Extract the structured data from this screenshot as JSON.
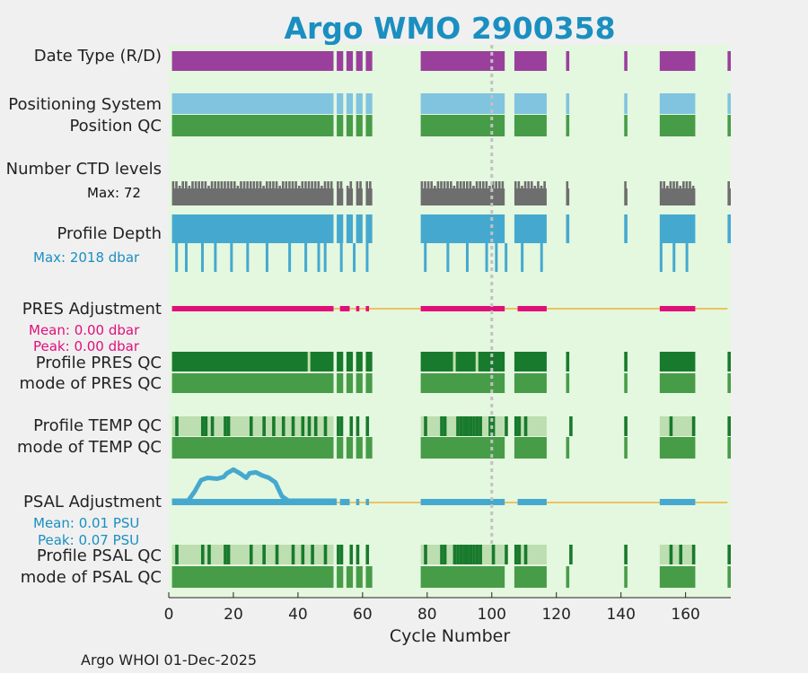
{
  "chart_data": {
    "type": "timeline",
    "title": "Argo WMO 2900358",
    "xlabel": "Cycle Number",
    "xlim": [
      0,
      174
    ],
    "xticks": [
      0,
      20,
      40,
      60,
      80,
      100,
      120,
      140,
      160
    ],
    "vline_x": 100,
    "footer": "Argo WHOI 01-Dec-2025",
    "row_labels": {
      "date_type": "Date Type (R/D)",
      "positioning_system": "Positioning System",
      "position_qc": "Position QC",
      "num_ctd_levels": "Number CTD levels",
      "profile_depth": "Profile Depth",
      "pres_adjustment": "PRES Adjustment",
      "profile_pres_qc": "Profile PRES QC",
      "mode_pres_qc": "mode of PRES QC",
      "profile_temp_qc": "Profile TEMP QC",
      "mode_temp_qc": "mode of TEMP QC",
      "psal_adjustment": "PSAL Adjustment",
      "profile_psal_qc": "Profile PSAL QC",
      "mode_psal_qc": "mode of PSAL QC"
    },
    "annotations": {
      "ctd_max": "Max: 72",
      "depth_max": "Max: 2018 dbar",
      "pres_mean": "Mean: 0.00 dbar",
      "pres_peak": "Peak: 0.00 dbar",
      "psal_mean": "Mean: 0.01 PSU",
      "psal_peak": "Peak: 0.07 PSU"
    },
    "data_segments": [
      [
        1,
        51
      ],
      [
        52,
        54
      ],
      [
        55,
        57
      ],
      [
        58,
        60
      ],
      [
        61,
        63
      ],
      [
        78,
        104
      ],
      [
        107,
        117
      ],
      [
        123,
        124
      ],
      [
        141,
        142
      ],
      [
        152,
        163
      ],
      [
        173,
        174
      ]
    ],
    "pres_adj_segments": [
      [
        1,
        51
      ],
      [
        53,
        56
      ],
      [
        58,
        59
      ],
      [
        61,
        62
      ],
      [
        78,
        104
      ],
      [
        108,
        117
      ],
      [
        152,
        163
      ]
    ],
    "psal_adj_segments": [
      [
        1,
        52
      ],
      [
        53,
        56
      ],
      [
        58,
        59
      ],
      [
        61,
        62
      ],
      [
        78,
        104
      ],
      [
        108,
        117
      ],
      [
        152,
        163
      ]
    ],
    "psal_adjustment_values": [
      [
        1,
        0
      ],
      [
        6,
        0
      ],
      [
        8,
        0.02
      ],
      [
        10,
        0.045
      ],
      [
        12,
        0.05
      ],
      [
        15,
        0.048
      ],
      [
        17,
        0.052
      ],
      [
        18,
        0.06
      ],
      [
        20,
        0.068
      ],
      [
        22,
        0.06
      ],
      [
        24,
        0.05
      ],
      [
        25,
        0.06
      ],
      [
        27,
        0.062
      ],
      [
        29,
        0.055
      ],
      [
        31,
        0.05
      ],
      [
        33,
        0.04
      ],
      [
        35,
        0.01
      ],
      [
        37,
        0
      ],
      [
        52,
        0
      ]
    ],
    "temp_qc_light_ranges": [
      [
        1,
        51
      ],
      [
        78,
        104
      ],
      [
        107,
        117
      ],
      [
        152,
        163
      ]
    ],
    "temp_qc_dark_cycles": [
      2,
      10,
      11,
      13,
      17,
      18,
      25,
      29,
      32,
      35,
      38,
      41,
      43,
      45,
      48,
      52,
      53,
      56,
      58,
      61,
      79,
      84,
      85,
      89,
      90,
      91,
      92,
      93,
      94,
      95,
      96,
      99,
      100,
      104,
      107,
      108,
      110,
      124,
      141,
      155,
      162,
      173
    ],
    "psal_qc_dark_cycles": [
      2,
      10,
      12,
      17,
      18,
      25,
      29,
      33,
      38,
      41,
      44,
      48,
      52,
      53,
      56,
      58,
      61,
      79,
      84,
      85,
      88,
      89,
      90,
      91,
      92,
      93,
      94,
      95,
      96,
      100,
      104,
      107,
      108,
      110,
      124,
      141,
      155,
      158,
      162,
      173
    ],
    "pres_qc_light_cycles": [
      43,
      88,
      95
    ],
    "depth_drop_cycles": [
      2,
      5,
      10,
      14,
      19,
      24,
      30,
      37,
      42,
      46,
      48,
      53,
      57,
      61,
      79,
      86,
      92,
      98,
      101,
      104,
      109,
      115,
      152,
      156,
      160
    ],
    "ctd_short_cycles": [
      3,
      6,
      12,
      21,
      29,
      34,
      40,
      47,
      55,
      60,
      82,
      88,
      94,
      99,
      109,
      113,
      115,
      154,
      158,
      162
    ]
  }
}
